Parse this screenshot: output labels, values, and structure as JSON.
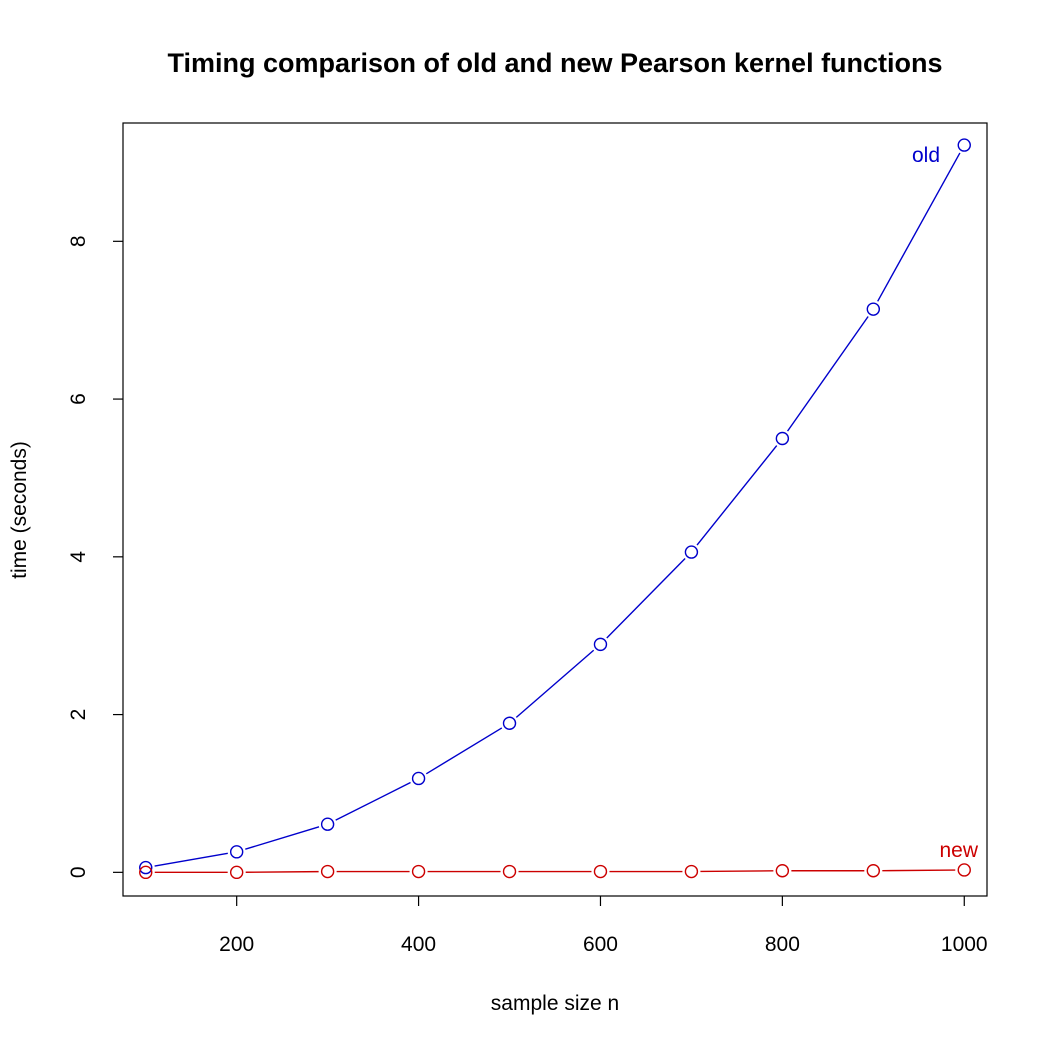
{
  "chart_data": {
    "type": "line",
    "title": "Timing comparison of old and new Pearson kernel functions",
    "xlabel": "sample size n",
    "ylabel": "time (seconds)",
    "xlim": [
      75,
      1025
    ],
    "ylim": [
      -0.3,
      9.5
    ],
    "x_ticks": [
      200,
      400,
      600,
      800,
      1000
    ],
    "y_ticks": [
      0,
      2,
      4,
      6,
      8
    ],
    "grid": false,
    "legend": "none",
    "x": [
      100,
      200,
      300,
      400,
      500,
      600,
      700,
      800,
      900,
      1000
    ],
    "series": [
      {
        "name": "old",
        "color": "#0000CC",
        "marker": "open-circle",
        "values": [
          0.06,
          0.26,
          0.61,
          1.19,
          1.89,
          2.89,
          4.06,
          5.5,
          7.14,
          9.22
        ]
      },
      {
        "name": "new",
        "color": "#CC0000",
        "marker": "open-circle",
        "values": [
          0.0,
          0.0,
          0.01,
          0.01,
          0.01,
          0.01,
          0.01,
          0.02,
          0.02,
          0.03
        ]
      }
    ]
  }
}
